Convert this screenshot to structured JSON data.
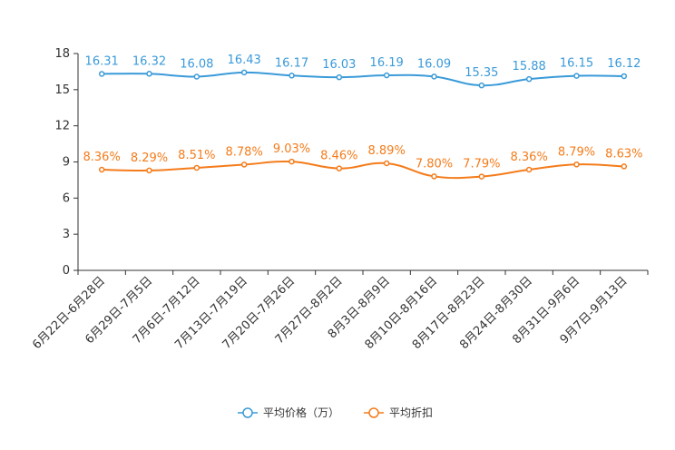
{
  "chart_data": {
    "type": "line",
    "categories": [
      "6月22日-6月28日",
      "6月29日-7月5日",
      "7月6日-7月12日",
      "7月13日-7月19日",
      "7月20日-7月26日",
      "7月27日-8月2日",
      "8月3日-8月9日",
      "8月10日-8月16日",
      "8月17日-8月23日",
      "8月24日-8月30日",
      "8月31日-9月6日",
      "9月7日-9月13日"
    ],
    "ylim": [
      0,
      18
    ],
    "yticks": [
      0,
      3,
      6,
      9,
      12,
      15,
      18
    ],
    "ytick_labels": [
      "0",
      "3",
      "6",
      "9",
      "12",
      "15",
      "18"
    ],
    "series": [
      {
        "name": "平均价格（万）",
        "color": "#3a9ad9",
        "values": [
          16.31,
          16.32,
          16.08,
          16.43,
          16.17,
          16.03,
          16.19,
          16.09,
          15.35,
          15.88,
          16.15,
          16.12
        ],
        "labels": [
          "16.31",
          "16.32",
          "16.08",
          "16.43",
          "16.17",
          "16.03",
          "16.19",
          "16.09",
          "15.35",
          "15.88",
          "16.15",
          "16.12"
        ]
      },
      {
        "name": "平均折扣",
        "color": "#f47c1b",
        "values": [
          8.36,
          8.29,
          8.51,
          8.78,
          9.03,
          8.46,
          8.89,
          7.8,
          7.79,
          8.36,
          8.79,
          8.63
        ],
        "labels": [
          "8.36%",
          "8.29%",
          "8.51%",
          "8.78%",
          "9.03%",
          "8.46%",
          "8.89%",
          "7.80%",
          "7.79%",
          "8.36%",
          "8.79%",
          "8.63%"
        ]
      }
    ]
  }
}
